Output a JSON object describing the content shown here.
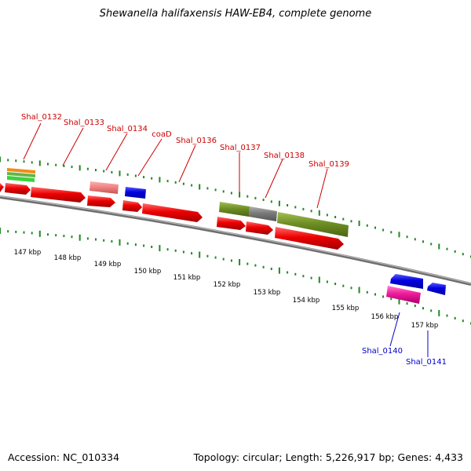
{
  "title": "Shewanella halifaxensis HAW-EB4, complete genome",
  "footer": {
    "accession": "Accession: NC_010334",
    "summary": "Topology: circular; Length: 5,226,917 bp; Genes: 4,433"
  },
  "scale_labels": [
    "147 kbp",
    "148 kbp",
    "149 kbp",
    "150 kbp",
    "151 kbp",
    "152 kbp",
    "153 kbp",
    "154 kbp",
    "155 kbp",
    "156 kbp",
    "157 kbp"
  ],
  "gene_labels": [
    {
      "name": "Shal_0132",
      "strand": "forward"
    },
    {
      "name": "Shal_0133",
      "strand": "forward"
    },
    {
      "name": "Shal_0134",
      "strand": "forward"
    },
    {
      "name": "coaD",
      "strand": "forward"
    },
    {
      "name": "Shal_0136",
      "strand": "forward"
    },
    {
      "name": "Shal_0137",
      "strand": "forward"
    },
    {
      "name": "Shal_0138",
      "strand": "forward"
    },
    {
      "name": "Shal_0139",
      "strand": "forward"
    },
    {
      "name": "Shal_0140",
      "strand": "reverse"
    },
    {
      "name": "Shal_0141",
      "strand": "reverse"
    }
  ],
  "colors": {
    "forward_label": "#cc0000",
    "reverse_label": "#0000cc",
    "cds_forward": "#ee0000",
    "tick": "#228822",
    "backbone": "#888888"
  }
}
